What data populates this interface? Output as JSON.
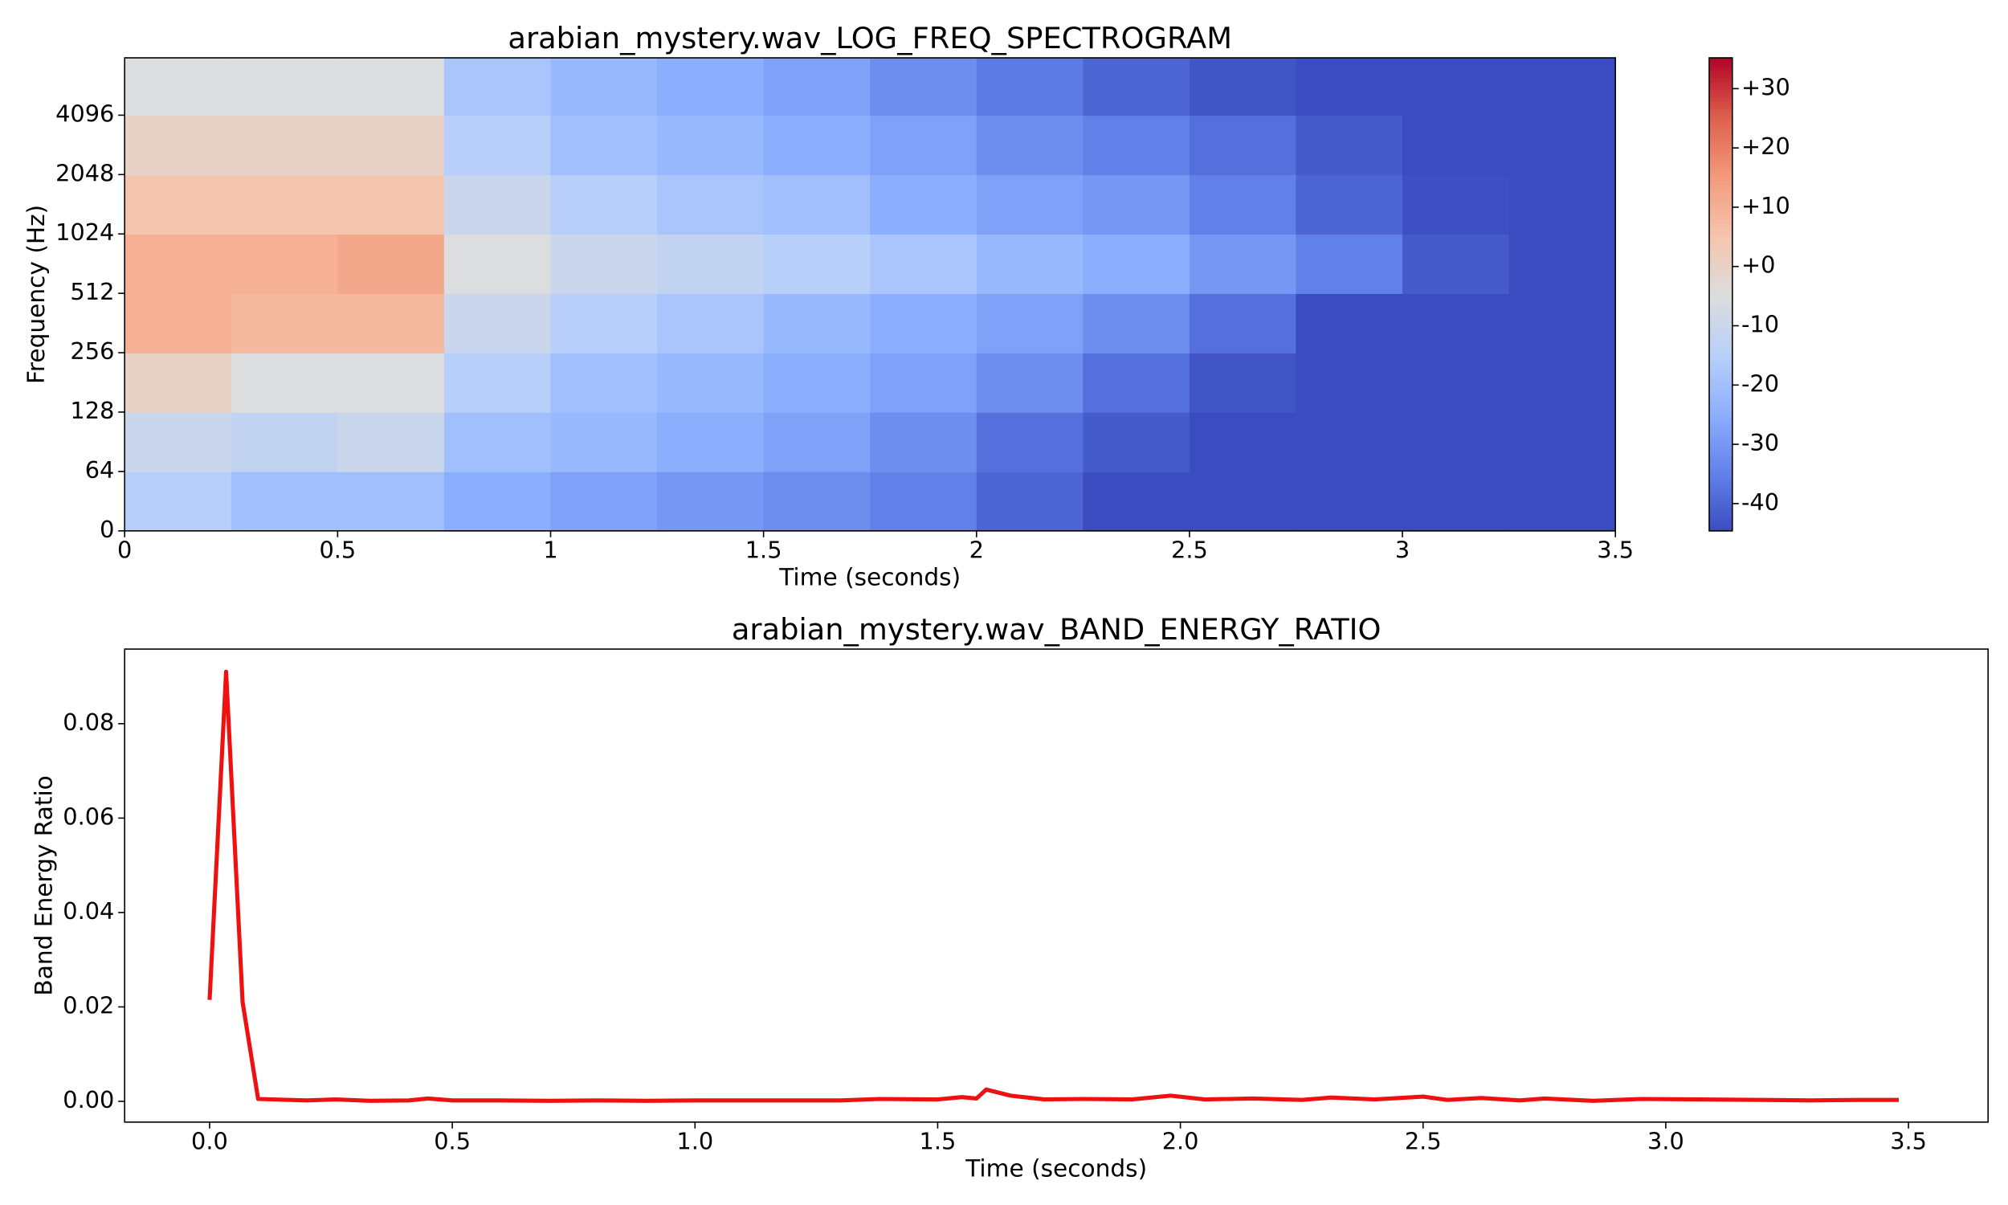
{
  "chart_data": [
    {
      "type": "heatmap",
      "title": "arabian_mystery.wav_LOG_FREQ_SPECTROGRAM",
      "xlabel": "Time (seconds)",
      "ylabel": "Frequency (Hz)",
      "colormap": "coolwarm",
      "x_edges": [
        0,
        0.25,
        0.5,
        0.75,
        1,
        1.25,
        1.5,
        1.75,
        2,
        2.25,
        2.5,
        2.75,
        3,
        3.25,
        3.5
      ],
      "y_edges": [
        0,
        64,
        128,
        256,
        512,
        1024,
        2048,
        4096,
        8000
      ],
      "z": [
        [
          -15,
          -20,
          -20,
          -25,
          -28,
          -30,
          -32,
          -35,
          -40,
          -45,
          -45,
          -45,
          -45,
          -45
        ],
        [
          -10,
          -12,
          -10,
          -20,
          -22,
          -25,
          -28,
          -32,
          -38,
          -42,
          -45,
          -45,
          -45,
          -45
        ],
        [
          0,
          -5,
          -5,
          -15,
          -20,
          -22,
          -25,
          -28,
          -32,
          -38,
          -43,
          -45,
          -45,
          -45
        ],
        [
          10,
          8,
          8,
          -10,
          -15,
          -18,
          -22,
          -25,
          -28,
          -32,
          -38,
          -45,
          -45,
          -45
        ],
        [
          10,
          10,
          12,
          -5,
          -10,
          -12,
          -15,
          -18,
          -22,
          -25,
          -30,
          -35,
          -42,
          -45
        ],
        [
          5,
          5,
          5,
          -10,
          -15,
          -18,
          -20,
          -25,
          -28,
          -30,
          -35,
          -40,
          -44,
          -45
        ],
        [
          0,
          0,
          0,
          -15,
          -20,
          -22,
          -25,
          -28,
          -32,
          -35,
          -38,
          -42,
          -45,
          -45
        ],
        [
          -5,
          -5,
          -5,
          -18,
          -22,
          -25,
          -28,
          -32,
          -36,
          -40,
          -43,
          -45,
          -45,
          -45
        ]
      ],
      "xlim": [
        0,
        3.5
      ],
      "xticks": [
        0,
        0.5,
        1,
        1.5,
        2,
        2.5,
        3,
        3.5
      ],
      "ylim": [
        0,
        8000
      ],
      "yticks": [
        0,
        64,
        128,
        256,
        512,
        1024,
        2048,
        4096
      ],
      "clim": [
        -44.6,
        35.2
      ],
      "cticks": [
        {
          "value": 30,
          "label": "+30"
        },
        {
          "value": 20,
          "label": "+20"
        },
        {
          "value": 10,
          "label": "+10"
        },
        {
          "value": 0,
          "label": "+0"
        },
        -10,
        -20,
        -30,
        -40
      ]
    },
    {
      "type": "line",
      "title": "arabian_mystery.wav_BAND_ENERGY_RATIO",
      "xlabel": "Time (seconds)",
      "ylabel": "Band Energy Ratio",
      "color": "#ee1111",
      "x": [
        0,
        0.034,
        0.068,
        0.1,
        0.2,
        0.26,
        0.33,
        0.41,
        0.45,
        0.5,
        0.6,
        0.7,
        0.8,
        0.9,
        1.0,
        1.1,
        1.2,
        1.3,
        1.38,
        1.5,
        1.55,
        1.58,
        1.6,
        1.65,
        1.72,
        1.8,
        1.9,
        1.98,
        2.05,
        2.15,
        2.25,
        2.31,
        2.4,
        2.5,
        2.55,
        2.62,
        2.7,
        2.75,
        2.85,
        2.95,
        3.07,
        3.2,
        3.3,
        3.4,
        3.48
      ],
      "values": [
        0.0215,
        0.091,
        0.021,
        0.0005,
        0.0002,
        0.0004,
        0.0001,
        0.0002,
        0.0006,
        0.0002,
        0.0002,
        0.0001,
        0.0002,
        0.0001,
        0.0002,
        0.0002,
        0.0002,
        0.0002,
        0.0005,
        0.0004,
        0.0009,
        0.0006,
        0.0025,
        0.0012,
        0.0004,
        0.0005,
        0.0004,
        0.0012,
        0.0004,
        0.0006,
        0.0003,
        0.0008,
        0.0004,
        0.001,
        0.0003,
        0.0007,
        0.0002,
        0.0006,
        0.0001,
        0.0005,
        0.0004,
        0.0003,
        0.0002,
        0.0003,
        0.0003
      ],
      "xlim": [
        -0.175,
        3.664
      ],
      "xticks": [
        {
          "value": 0,
          "label": "0.0"
        },
        0.5,
        {
          "value": 1,
          "label": "1.0"
        },
        1.5,
        {
          "value": 2,
          "label": "2.0"
        },
        2.5,
        {
          "value": 3,
          "label": "3.0"
        },
        3.5
      ],
      "ylim": [
        -0.0044,
        0.0958
      ],
      "yticks": [
        {
          "value": 0,
          "label": "0.00"
        },
        {
          "value": 0.02,
          "label": "0.02"
        },
        {
          "value": 0.04,
          "label": "0.04"
        },
        {
          "value": 0.06,
          "label": "0.06"
        },
        {
          "value": 0.08,
          "label": "0.08"
        }
      ]
    }
  ]
}
